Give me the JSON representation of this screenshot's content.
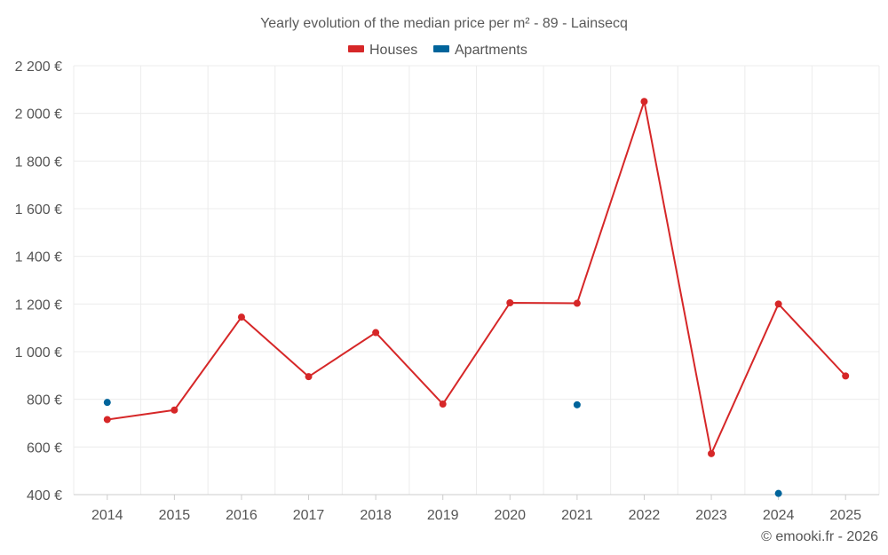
{
  "chart_data": {
    "type": "line",
    "title": "Yearly evolution of the median price per m² - 89 - Lainsecq",
    "xlabel": "",
    "ylabel": "",
    "categories": [
      "2014",
      "2015",
      "2016",
      "2017",
      "2018",
      "2019",
      "2020",
      "2021",
      "2022",
      "2023",
      "2024",
      "2025"
    ],
    "ylim": [
      400,
      2200
    ],
    "yticks": [
      400,
      600,
      800,
      1000,
      1200,
      1400,
      1600,
      1800,
      2000,
      2200
    ],
    "ytick_labels": [
      "400 €",
      "600 €",
      "800 €",
      "1 000 €",
      "1 200 €",
      "1 400 €",
      "1 600 €",
      "1 800 €",
      "2 000 €",
      "2 200 €"
    ],
    "grid": true,
    "legend_position": "top-center",
    "series": [
      {
        "name": "Houses",
        "color": "#d62728",
        "line": true,
        "values": [
          715,
          755,
          1145,
          895,
          1080,
          780,
          1205,
          1203,
          2050,
          572,
          1200,
          898
        ]
      },
      {
        "name": "Apartments",
        "color": "#00649b",
        "line": false,
        "values": [
          787,
          null,
          null,
          null,
          null,
          null,
          null,
          777,
          null,
          null,
          405,
          null
        ]
      }
    ]
  },
  "credit": "© emooki.fr - 2026"
}
